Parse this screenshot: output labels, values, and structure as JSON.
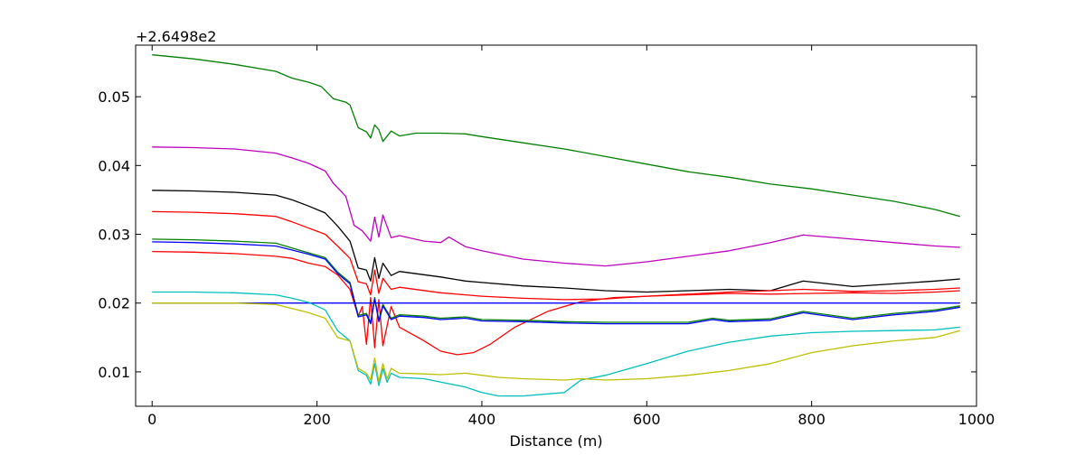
{
  "chart_data": {
    "type": "line",
    "title": "",
    "xlabel": "Distance (m)",
    "ylabel": "",
    "offset_label": "+2.6498e2",
    "xlim": [
      -20,
      1000
    ],
    "ylim": [
      0.005,
      0.0575
    ],
    "xticks": [
      0,
      200,
      400,
      600,
      800,
      1000
    ],
    "xtick_labels": [
      "0",
      "200",
      "400",
      "600",
      "800",
      "1000"
    ],
    "yticks": [
      0.01,
      0.02,
      0.03,
      0.04,
      0.05
    ],
    "ytick_labels": [
      "0.01",
      "0.02",
      "0.03",
      "0.04",
      "0.05"
    ],
    "grid": false,
    "legend": "none",
    "series": [
      {
        "color": "#008000",
        "x": [
          0,
          50,
          100,
          150,
          170,
          190,
          205,
          220,
          235,
          240,
          250,
          260,
          265,
          270,
          275,
          280,
          290,
          300,
          320,
          350,
          380,
          400,
          450,
          500,
          550,
          600,
          650,
          700,
          750,
          800,
          850,
          900,
          950,
          980
        ],
        "y": [
          0.0561,
          0.0555,
          0.0547,
          0.0537,
          0.0527,
          0.0521,
          0.0515,
          0.0497,
          0.0492,
          0.0488,
          0.0455,
          0.0449,
          0.044,
          0.0459,
          0.0452,
          0.0435,
          0.045,
          0.0443,
          0.0447,
          0.0447,
          0.0446,
          0.0442,
          0.0433,
          0.0424,
          0.0413,
          0.0402,
          0.0391,
          0.0383,
          0.0373,
          0.0366,
          0.0357,
          0.0348,
          0.0336,
          0.0326
        ]
      },
      {
        "color": "#bf00bf",
        "x": [
          0,
          50,
          100,
          150,
          170,
          190,
          210,
          220,
          235,
          245,
          255,
          265,
          270,
          275,
          280,
          290,
          300,
          330,
          350,
          360,
          380,
          400,
          450,
          500,
          550,
          600,
          650,
          700,
          750,
          790,
          850,
          900,
          950,
          980
        ],
        "y": [
          0.0427,
          0.0426,
          0.0424,
          0.0418,
          0.0411,
          0.0403,
          0.0392,
          0.0374,
          0.0355,
          0.0313,
          0.0305,
          0.029,
          0.0325,
          0.0296,
          0.0328,
          0.0295,
          0.0298,
          0.029,
          0.0288,
          0.0296,
          0.0282,
          0.0276,
          0.0264,
          0.0258,
          0.0254,
          0.026,
          0.0268,
          0.0276,
          0.0288,
          0.0299,
          0.0293,
          0.0288,
          0.0283,
          0.0281
        ]
      },
      {
        "color": "#000000",
        "x": [
          0,
          50,
          100,
          150,
          170,
          190,
          210,
          225,
          240,
          250,
          260,
          265,
          270,
          275,
          280,
          290,
          300,
          350,
          380,
          400,
          450,
          500,
          550,
          600,
          650,
          700,
          750,
          790,
          850,
          900,
          950,
          980
        ],
        "y": [
          0.0364,
          0.0363,
          0.0361,
          0.0357,
          0.035,
          0.0341,
          0.0331,
          0.0312,
          0.029,
          0.0251,
          0.0248,
          0.0232,
          0.0266,
          0.0236,
          0.0258,
          0.024,
          0.0246,
          0.0238,
          0.0232,
          0.023,
          0.0225,
          0.0222,
          0.0218,
          0.0216,
          0.0218,
          0.022,
          0.0218,
          0.0232,
          0.0224,
          0.0228,
          0.0232,
          0.0235
        ]
      },
      {
        "color": "#ff0000",
        "x": [
          0,
          50,
          100,
          150,
          170,
          190,
          210,
          225,
          240,
          250,
          260,
          265,
          270,
          275,
          280,
          290,
          300,
          350,
          380,
          400,
          450,
          500,
          550,
          600,
          650,
          700,
          750,
          790,
          850,
          900,
          950,
          980
        ],
        "y": [
          0.0333,
          0.0332,
          0.033,
          0.0326,
          0.0318,
          0.0309,
          0.03,
          0.0283,
          0.0265,
          0.0231,
          0.0228,
          0.0212,
          0.0248,
          0.0214,
          0.0236,
          0.022,
          0.0223,
          0.0215,
          0.0212,
          0.021,
          0.0207,
          0.0205,
          0.0206,
          0.021,
          0.0213,
          0.0216,
          0.0218,
          0.022,
          0.0217,
          0.0218,
          0.022,
          0.0222
        ]
      },
      {
        "color": "#ff0000",
        "x": [
          0,
          50,
          100,
          150,
          170,
          190,
          210,
          225,
          240,
          250,
          255,
          260,
          265,
          270,
          275,
          280,
          290,
          300,
          330,
          350,
          370,
          390,
          410,
          440,
          480,
          520,
          560,
          600,
          650,
          700,
          750,
          800,
          850,
          900,
          950,
          980
        ],
        "y": [
          0.0275,
          0.0274,
          0.0272,
          0.0268,
          0.0265,
          0.0258,
          0.0253,
          0.0241,
          0.022,
          0.0181,
          0.0195,
          0.014,
          0.0208,
          0.0135,
          0.0205,
          0.0138,
          0.0195,
          0.0165,
          0.0145,
          0.013,
          0.0125,
          0.0128,
          0.014,
          0.0165,
          0.0188,
          0.0202,
          0.0208,
          0.021,
          0.0212,
          0.0214,
          0.0213,
          0.0214,
          0.0215,
          0.0214,
          0.0216,
          0.0218
        ]
      },
      {
        "color": "#008000",
        "x": [
          0,
          50,
          100,
          150,
          170,
          190,
          210,
          225,
          240,
          250,
          260,
          265,
          270,
          275,
          280,
          290,
          300,
          330,
          350,
          380,
          400,
          450,
          500,
          550,
          600,
          650,
          680,
          700,
          750,
          790,
          850,
          900,
          950,
          980
        ],
        "y": [
          0.0293,
          0.0292,
          0.029,
          0.0287,
          0.028,
          0.0273,
          0.0266,
          0.0245,
          0.023,
          0.0182,
          0.0185,
          0.0172,
          0.0208,
          0.0175,
          0.0198,
          0.0178,
          0.0183,
          0.0181,
          0.0178,
          0.018,
          0.0176,
          0.0175,
          0.0173,
          0.0172,
          0.0172,
          0.0172,
          0.0178,
          0.0175,
          0.0177,
          0.0188,
          0.0178,
          0.0185,
          0.019,
          0.0196
        ]
      },
      {
        "color": "#0000ff",
        "x": [
          0,
          50,
          100,
          150,
          170,
          190,
          210,
          225,
          240,
          250,
          260,
          265,
          270,
          275,
          280,
          290,
          300,
          330,
          350,
          380,
          400,
          450,
          500,
          550,
          600,
          650,
          680,
          700,
          750,
          790,
          850,
          900,
          950,
          980
        ],
        "y": [
          0.0289,
          0.0288,
          0.0286,
          0.0283,
          0.0277,
          0.0271,
          0.0264,
          0.0243,
          0.0228,
          0.018,
          0.0183,
          0.017,
          0.0206,
          0.0173,
          0.0196,
          0.0176,
          0.0181,
          0.0179,
          0.0176,
          0.0178,
          0.0174,
          0.0173,
          0.0171,
          0.017,
          0.017,
          0.017,
          0.0176,
          0.0173,
          0.0175,
          0.0186,
          0.0176,
          0.0183,
          0.0188,
          0.0194
        ]
      },
      {
        "color": "#0000ff",
        "x": [
          0,
          980
        ],
        "y": [
          0.02,
          0.02
        ]
      },
      {
        "color": "#00bfbf",
        "x": [
          0,
          50,
          100,
          150,
          170,
          190,
          210,
          225,
          240,
          250,
          260,
          265,
          270,
          275,
          280,
          285,
          290,
          300,
          330,
          350,
          380,
          400,
          420,
          450,
          500,
          520,
          550,
          600,
          650,
          700,
          750,
          800,
          850,
          900,
          950,
          980
        ],
        "y": [
          0.0216,
          0.0216,
          0.0215,
          0.0212,
          0.0207,
          0.0201,
          0.019,
          0.016,
          0.0145,
          0.0102,
          0.0095,
          0.0082,
          0.0112,
          0.008,
          0.0105,
          0.0085,
          0.0098,
          0.0092,
          0.009,
          0.0085,
          0.0078,
          0.007,
          0.0065,
          0.0065,
          0.007,
          0.0088,
          0.0095,
          0.0112,
          0.013,
          0.0143,
          0.0152,
          0.0157,
          0.0159,
          0.016,
          0.0161,
          0.0165
        ]
      },
      {
        "color": "#bfbf00",
        "x": [
          0,
          50,
          100,
          150,
          170,
          190,
          210,
          225,
          240,
          250,
          260,
          265,
          270,
          275,
          280,
          285,
          290,
          300,
          330,
          350,
          380,
          400,
          420,
          450,
          500,
          520,
          550,
          600,
          650,
          700,
          750,
          800,
          850,
          900,
          950,
          980
        ],
        "y": [
          0.02,
          0.02,
          0.02,
          0.0198,
          0.0192,
          0.0186,
          0.0178,
          0.015,
          0.0145,
          0.0105,
          0.0098,
          0.0088,
          0.012,
          0.0086,
          0.0112,
          0.009,
          0.0105,
          0.0098,
          0.0097,
          0.0096,
          0.0098,
          0.0095,
          0.0092,
          0.009,
          0.0088,
          0.009,
          0.0088,
          0.009,
          0.0095,
          0.0102,
          0.0112,
          0.0128,
          0.0138,
          0.0145,
          0.015,
          0.016
        ]
      }
    ]
  }
}
